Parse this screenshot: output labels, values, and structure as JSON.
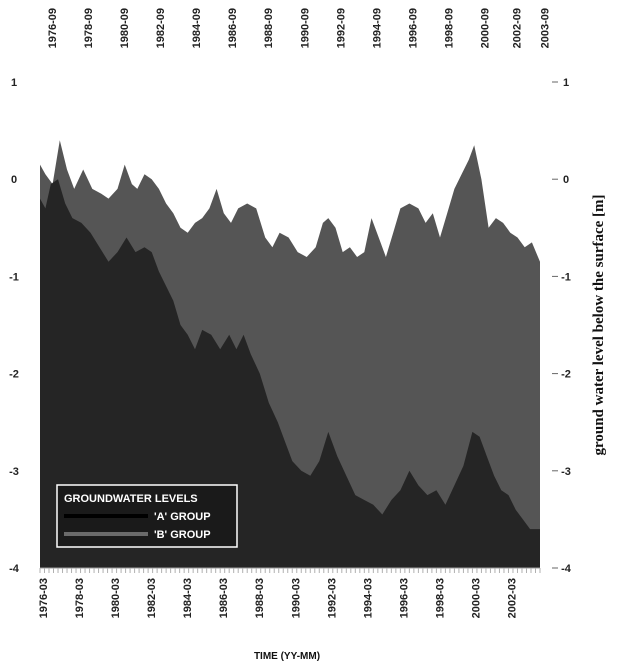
{
  "chart_data": {
    "type": "area",
    "title": "",
    "xlabel": "TIME (YY-MM)",
    "ylabel": "ground water level below the surface [m]",
    "ylim": [
      -4,
      1
    ],
    "y_ticks": [
      "1",
      "0",
      "-1",
      "-2",
      "-3",
      "-4"
    ],
    "y_ticks_right": [
      "1",
      "0",
      "-1",
      "-2",
      "-3",
      "-4"
    ],
    "x_ticks_bottom": [
      "1976-03",
      "1978-03",
      "1980-03",
      "1982-03",
      "1984-03",
      "1986-03",
      "1988-03",
      "1990-03",
      "1992-03",
      "1994-03",
      "1996-03",
      "1998-03",
      "2000-03",
      "2002-03"
    ],
    "x_ticks_top": [
      "1976-09",
      "1978-09",
      "1980-09",
      "1982-09",
      "1984-09",
      "1986-09",
      "1988-09",
      "1990-09",
      "1992-09",
      "1994-09",
      "1996-09",
      "1998-09",
      "2000-09",
      "2002-09",
      "2003-09"
    ],
    "x_range": [
      1976.0,
      2003.75
    ],
    "legend": {
      "title": "GROUNDWATER LEVELS",
      "position": "bottom-left"
    },
    "series": [
      {
        "name": "'B' GROUP",
        "color": "#555555",
        "x": [
          1976.0,
          1976.3,
          1976.7,
          1977.1,
          1977.5,
          1977.9,
          1978.4,
          1978.9,
          1979.4,
          1979.8,
          1980.3,
          1980.7,
          1981.1,
          1981.4,
          1981.8,
          1982.2,
          1982.6,
          1983.0,
          1983.4,
          1983.8,
          1984.2,
          1984.6,
          1985.0,
          1985.4,
          1985.8,
          1986.2,
          1986.6,
          1987.0,
          1987.5,
          1988.0,
          1988.5,
          1988.9,
          1989.3,
          1989.8,
          1990.3,
          1990.8,
          1991.3,
          1991.7,
          1992.0,
          1992.4,
          1992.8,
          1993.2,
          1993.6,
          1994.0,
          1994.4,
          1994.8,
          1995.2,
          1995.6,
          1996.0,
          1996.5,
          1997.0,
          1997.4,
          1997.8,
          1998.2,
          1998.6,
          1999.0,
          1999.4,
          1999.8,
          2000.1,
          2000.5,
          2000.9,
          2001.3,
          2001.7,
          2002.1,
          2002.5,
          2002.9,
          2003.3,
          2003.75
        ],
        "values": [
          0.15,
          0.05,
          -0.05,
          0.4,
          0.1,
          -0.1,
          0.1,
          -0.1,
          -0.15,
          -0.2,
          -0.1,
          0.15,
          -0.05,
          -0.1,
          0.05,
          0.0,
          -0.1,
          -0.25,
          -0.35,
          -0.5,
          -0.55,
          -0.45,
          -0.4,
          -0.3,
          -0.1,
          -0.35,
          -0.45,
          -0.3,
          -0.25,
          -0.3,
          -0.6,
          -0.7,
          -0.55,
          -0.6,
          -0.75,
          -0.8,
          -0.7,
          -0.45,
          -0.4,
          -0.5,
          -0.75,
          -0.7,
          -0.8,
          -0.75,
          -0.4,
          -0.6,
          -0.8,
          -0.55,
          -0.3,
          -0.25,
          -0.3,
          -0.45,
          -0.35,
          -0.6,
          -0.35,
          -0.1,
          0.05,
          0.2,
          0.35,
          0.0,
          -0.5,
          -0.4,
          -0.45,
          -0.55,
          -0.6,
          -0.7,
          -0.65,
          -0.85
        ]
      },
      {
        "name": "'A' GROUP",
        "color": "#252525",
        "x": [
          1976.0,
          1976.3,
          1976.6,
          1977.0,
          1977.4,
          1977.8,
          1978.3,
          1978.8,
          1979.3,
          1979.8,
          1980.3,
          1980.8,
          1981.3,
          1981.8,
          1982.2,
          1982.6,
          1983.0,
          1983.4,
          1983.8,
          1984.2,
          1984.6,
          1985.0,
          1985.5,
          1986.0,
          1986.5,
          1986.9,
          1987.3,
          1987.7,
          1988.2,
          1988.7,
          1989.2,
          1989.6,
          1990.0,
          1990.5,
          1991.0,
          1991.5,
          1992.0,
          1992.5,
          1993.0,
          1993.5,
          1994.0,
          1994.5,
          1995.0,
          1995.5,
          1996.0,
          1996.5,
          1997.0,
          1997.5,
          1998.0,
          1998.5,
          1999.0,
          1999.5,
          2000.0,
          2000.4,
          2000.8,
          2001.2,
          2001.6,
          2002.0,
          2002.4,
          2002.8,
          2003.2,
          2003.75
        ],
        "values": [
          -0.2,
          -0.3,
          -0.05,
          0.0,
          -0.25,
          -0.4,
          -0.45,
          -0.55,
          -0.7,
          -0.85,
          -0.75,
          -0.6,
          -0.75,
          -0.7,
          -0.75,
          -0.95,
          -1.1,
          -1.25,
          -1.5,
          -1.6,
          -1.75,
          -1.55,
          -1.6,
          -1.75,
          -1.6,
          -1.75,
          -1.6,
          -1.8,
          -2.0,
          -2.3,
          -2.5,
          -2.7,
          -2.9,
          -3.0,
          -3.05,
          -2.9,
          -2.6,
          -2.85,
          -3.05,
          -3.25,
          -3.3,
          -3.35,
          -3.45,
          -3.3,
          -3.2,
          -3.0,
          -3.15,
          -3.25,
          -3.2,
          -3.35,
          -3.15,
          -2.95,
          -2.6,
          -2.65,
          -2.85,
          -3.05,
          -3.2,
          -3.25,
          -3.4,
          -3.5,
          -3.6,
          -3.6
        ]
      }
    ]
  }
}
